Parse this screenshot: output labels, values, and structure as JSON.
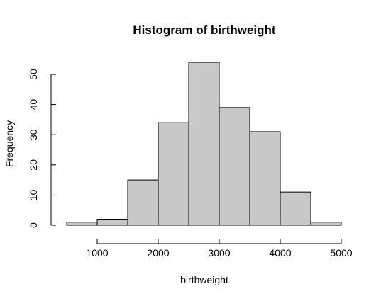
{
  "chart_data": {
    "type": "bar",
    "title": "Histogram of birthweight",
    "xlabel": "birthweight",
    "ylabel": "Frequency",
    "bins": [
      {
        "start": 500,
        "end": 1000,
        "count": 1
      },
      {
        "start": 1000,
        "end": 1500,
        "count": 2
      },
      {
        "start": 1500,
        "end": 2000,
        "count": 15
      },
      {
        "start": 2000,
        "end": 2500,
        "count": 34
      },
      {
        "start": 2500,
        "end": 3000,
        "count": 54
      },
      {
        "start": 3000,
        "end": 3500,
        "count": 39
      },
      {
        "start": 3500,
        "end": 4000,
        "count": 31
      },
      {
        "start": 4000,
        "end": 4500,
        "count": 11
      },
      {
        "start": 4500,
        "end": 5000,
        "count": 1
      }
    ],
    "xlim": [
      500,
      5000
    ],
    "ylim": [
      0,
      54
    ],
    "x_ticks": [
      1000,
      2000,
      3000,
      4000,
      5000
    ],
    "y_ticks": [
      0,
      10,
      20,
      30,
      40,
      50
    ],
    "bar_fill": "#c8c8c8",
    "bar_stroke": "#000000",
    "grid": false,
    "legend": "none"
  }
}
